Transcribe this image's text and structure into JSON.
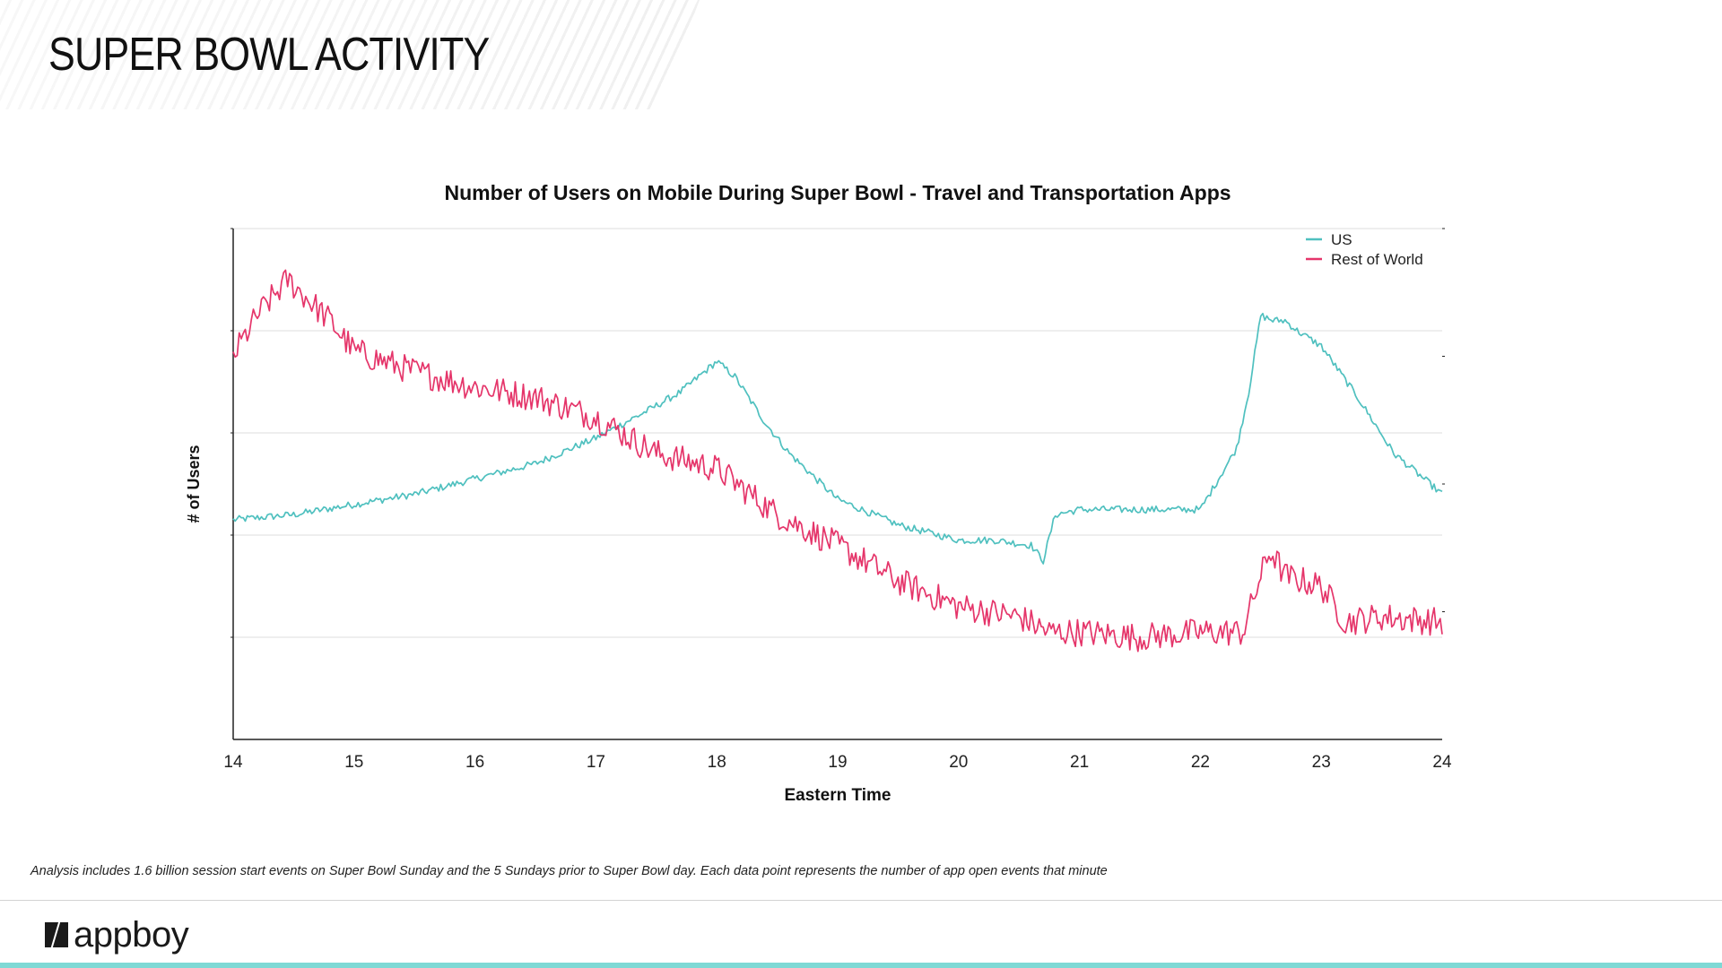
{
  "page": {
    "title": "SUPER BOWL ACTIVITY",
    "footnote": "Analysis includes 1.6 billion session start events on Super Bowl Sunday and the 5 Sundays prior to Super Bowl day.  Each data point represents the number of app open events that minute",
    "logo_text": "appboy",
    "accent_color": "#7ed9d5"
  },
  "chart_data": {
    "type": "line",
    "title": "Number of Users on Mobile During Super Bowl - Travel and Transportation Apps",
    "xlabel": "Eastern Time",
    "ylabel": "# of Users",
    "xlim": [
      14,
      24
    ],
    "ylim": [
      0,
      100
    ],
    "x_ticks": [
      "14",
      "15",
      "16",
      "17",
      "18",
      "19",
      "20",
      "21",
      "22",
      "23",
      "24"
    ],
    "y_gridlines": [
      20,
      40,
      60,
      80,
      100
    ],
    "y_tick_labels_shown": false,
    "legend_position": "top-right",
    "series": [
      {
        "name": "US",
        "color": "#4fc0bf",
        "noise": 0.7,
        "x": [
          14.0,
          14.5,
          15.0,
          15.5,
          16.0,
          16.5,
          17.0,
          17.4,
          17.7,
          18.0,
          18.15,
          18.4,
          18.6,
          19.0,
          19.5,
          20.0,
          20.3,
          20.6,
          20.7,
          20.8,
          21.0,
          21.5,
          22.0,
          22.3,
          22.4,
          22.5,
          22.6,
          22.7,
          22.8,
          23.0,
          23.3,
          23.6,
          24.0
        ],
        "values": [
          43,
          44,
          46,
          48,
          51,
          54,
          59,
          64,
          68,
          74,
          71,
          62,
          56,
          47,
          42,
          39,
          39,
          38,
          35,
          44,
          45,
          45,
          45,
          57,
          68,
          83,
          82,
          82,
          80,
          77,
          67,
          56,
          48
        ]
      },
      {
        "name": "Rest of World",
        "color": "#e5356a",
        "noise": 2.8,
        "x": [
          14.0,
          14.2,
          14.45,
          14.8,
          15.0,
          15.5,
          16.0,
          16.5,
          17.0,
          17.5,
          18.0,
          18.5,
          19.0,
          19.5,
          20.0,
          20.5,
          20.75,
          21.0,
          21.5,
          22.0,
          22.35,
          22.5,
          22.58,
          22.7,
          23.0,
          23.2,
          23.5,
          24.0
        ],
        "values": [
          75,
          83,
          90,
          82,
          76,
          72,
          69,
          67,
          63,
          56,
          53,
          44,
          38,
          31,
          26,
          24,
          21,
          21,
          20,
          21,
          21,
          32,
          37,
          32,
          30,
          23,
          24,
          23
        ]
      }
    ]
  }
}
